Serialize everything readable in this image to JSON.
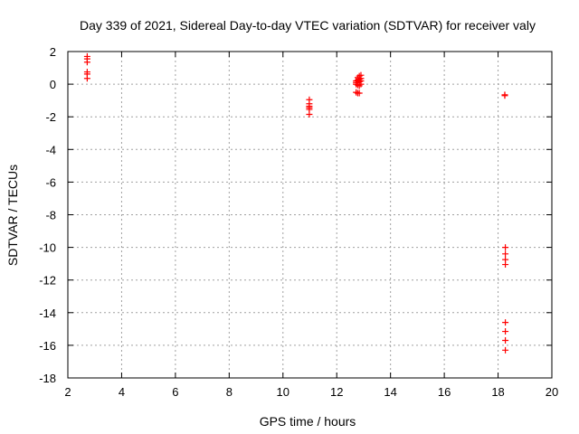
{
  "chart_data": {
    "type": "scatter",
    "title": "Day 339 of 2021, Sidereal Day-to-day VTEC variation (SDTVAR) for receiver valy",
    "xlabel": "GPS time / hours",
    "ylabel": "SDTVAR / TECUs",
    "xlim": [
      2,
      20
    ],
    "ylim": [
      -18,
      2
    ],
    "grid": true,
    "xticks": [
      2,
      4,
      6,
      8,
      10,
      12,
      14,
      16,
      18,
      20
    ],
    "yticks": [
      2,
      0,
      -2,
      -4,
      -6,
      -8,
      -10,
      -12,
      -14,
      -16,
      -18
    ],
    "marker": "+",
    "color": "#ff0000",
    "series": [
      {
        "name": "SDTVAR",
        "points": [
          [
            2.72,
            1.7
          ],
          [
            2.72,
            1.55
          ],
          [
            2.72,
            1.35
          ],
          [
            2.72,
            0.75
          ],
          [
            2.72,
            0.62
          ],
          [
            2.72,
            0.35
          ],
          [
            10.98,
            -0.95
          ],
          [
            10.98,
            -1.2
          ],
          [
            10.98,
            -1.35
          ],
          [
            10.98,
            -1.45
          ],
          [
            10.98,
            -1.55
          ],
          [
            10.98,
            -1.85
          ],
          [
            12.72,
            0.2
          ],
          [
            12.72,
            0.1
          ],
          [
            12.72,
            0.0
          ],
          [
            12.72,
            -0.5
          ],
          [
            12.78,
            0.4
          ],
          [
            12.78,
            0.25
          ],
          [
            12.78,
            0.1
          ],
          [
            12.78,
            -0.05
          ],
          [
            12.78,
            -0.55
          ],
          [
            12.84,
            0.5
          ],
          [
            12.84,
            0.3
          ],
          [
            12.84,
            0.15
          ],
          [
            12.84,
            -0.1
          ],
          [
            12.84,
            -0.55
          ],
          [
            12.9,
            0.55
          ],
          [
            12.9,
            0.35
          ],
          [
            12.9,
            0.2
          ],
          [
            12.9,
            0.0
          ],
          [
            18.25,
            -0.65
          ],
          [
            18.25,
            -0.7
          ],
          [
            18.27,
            -10.0
          ],
          [
            18.27,
            -10.4
          ],
          [
            18.27,
            -10.75
          ],
          [
            18.27,
            -11.05
          ],
          [
            18.27,
            -14.6
          ],
          [
            18.27,
            -15.15
          ],
          [
            18.27,
            -15.7
          ],
          [
            18.27,
            -16.3
          ]
        ]
      }
    ]
  }
}
